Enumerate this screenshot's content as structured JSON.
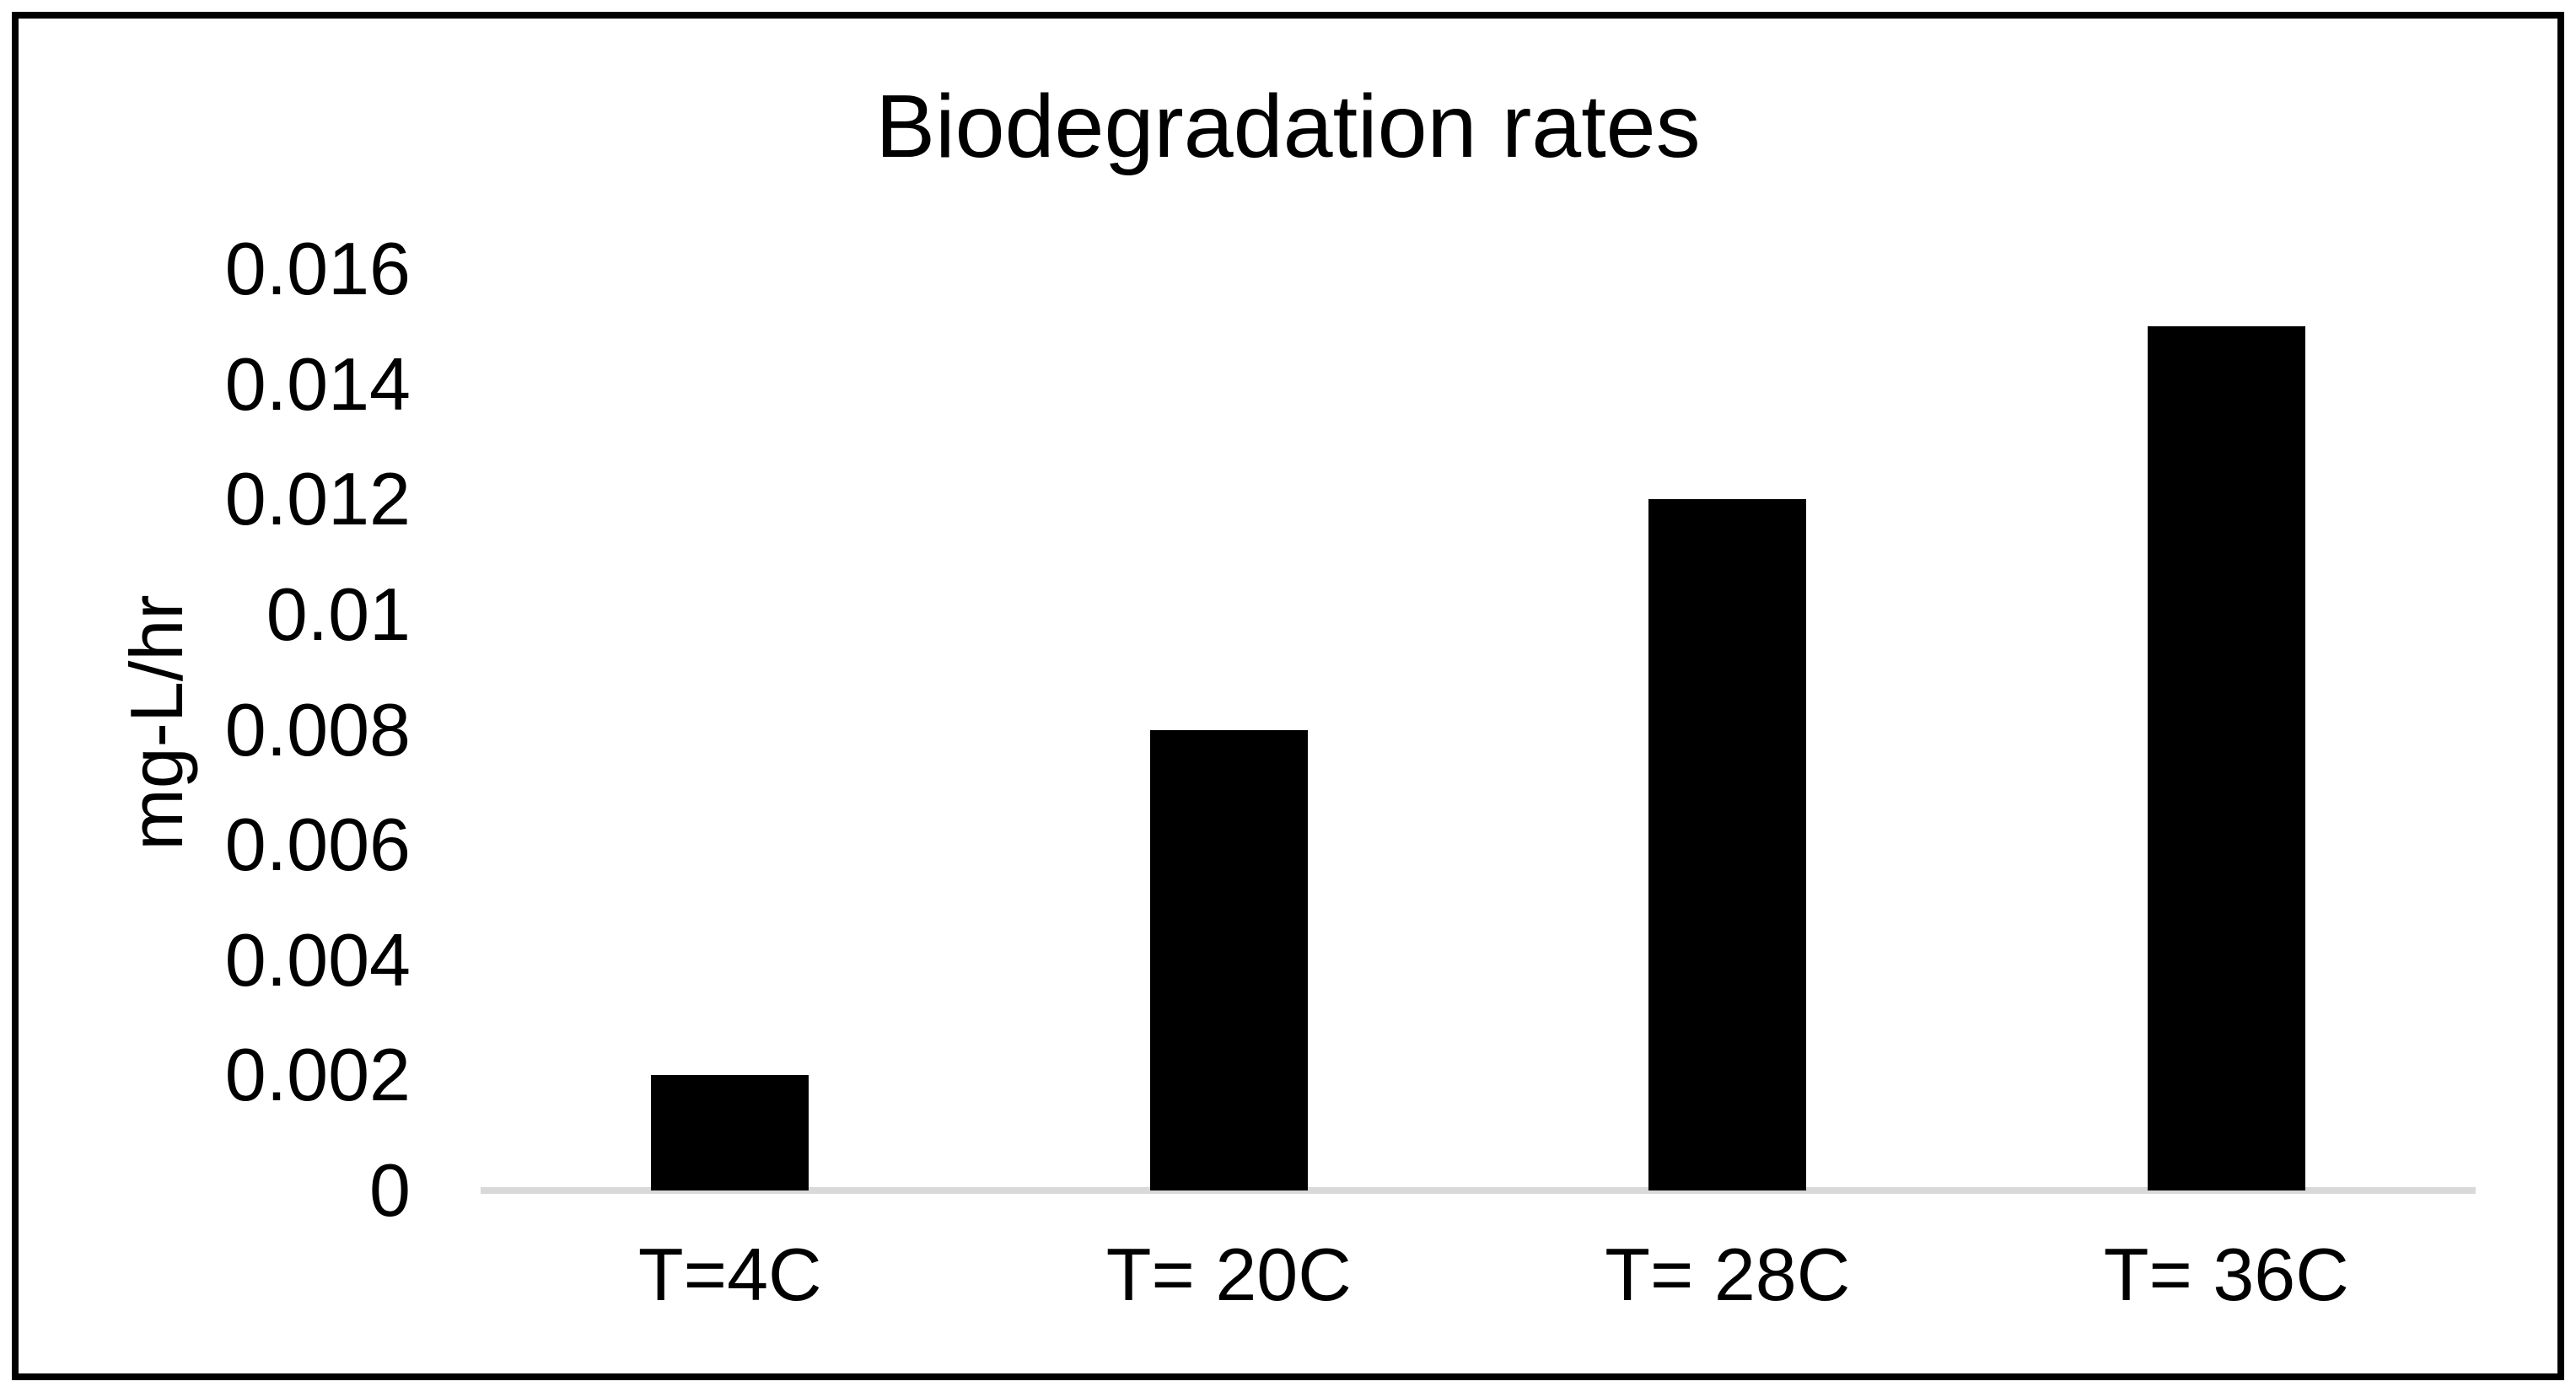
{
  "chart_data": {
    "type": "bar",
    "title": "Biodegradation rates",
    "ylabel": "mg-L/hr",
    "xlabel": "",
    "categories": [
      "T=4C",
      "T= 20C",
      "T= 28C",
      "T= 36C"
    ],
    "values": [
      0.002,
      0.008,
      0.012,
      0.015
    ],
    "y_ticks": [
      0,
      0.002,
      0.004,
      0.006,
      0.008,
      0.01,
      0.012,
      0.014,
      0.016
    ],
    "ylim": [
      0,
      0.016
    ],
    "grid": false,
    "legend": false,
    "bar_color": "#000000",
    "axis_line_color": "#d9d9d9",
    "text_color": "#000000",
    "background_color": "#ffffff",
    "border_color": "#000000"
  }
}
